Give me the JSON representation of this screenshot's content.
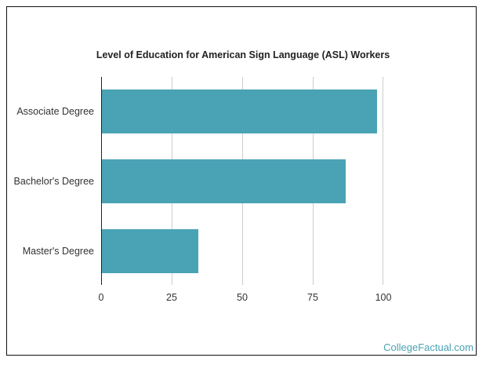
{
  "chart_data": {
    "type": "bar",
    "orientation": "horizontal",
    "title": "Level of Education for American Sign Language (ASL) Workers",
    "categories": [
      "Associate Degree",
      "Bachelor's Degree",
      "Master's Degree"
    ],
    "values": [
      97.5,
      86.4,
      34.2
    ],
    "xlabel": "",
    "ylabel": "",
    "xlim": [
      0,
      100
    ],
    "xticks": [
      "0",
      "25",
      "50",
      "75",
      "100"
    ],
    "grid": true,
    "legend": null,
    "bar_color": "#4aa3b4"
  },
  "branding": {
    "text": "CollegeFactual.com"
  }
}
